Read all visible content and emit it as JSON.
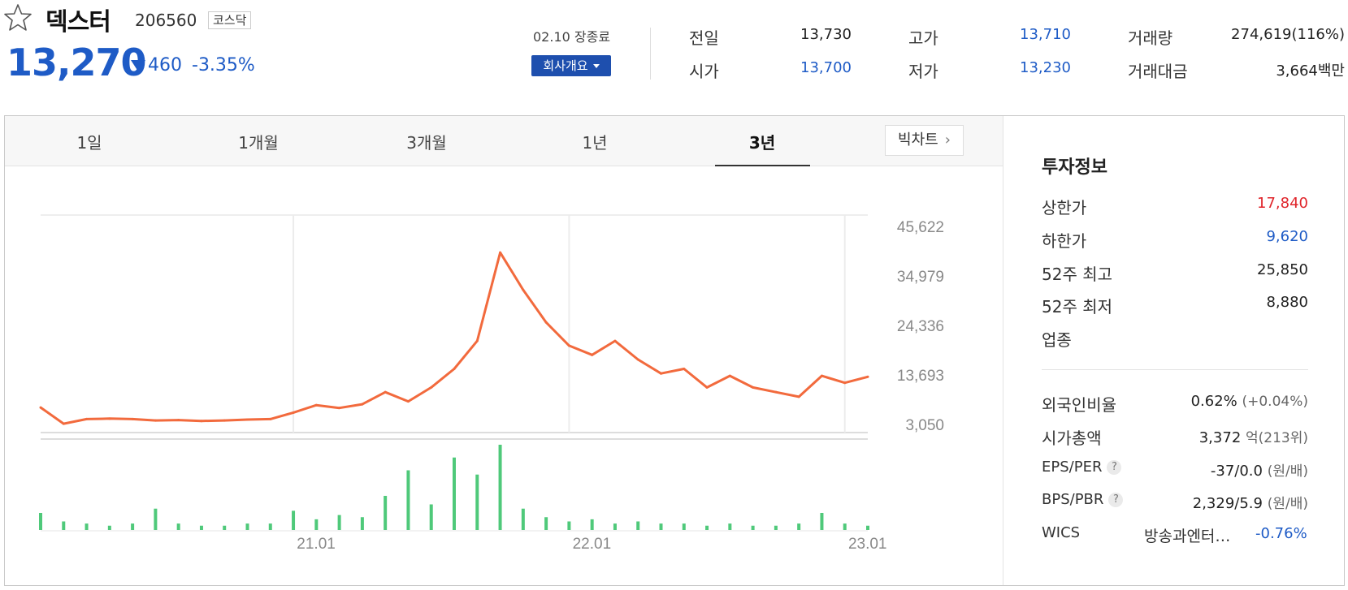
{
  "header": {
    "name": "덱스터",
    "code": "206560",
    "market": "코스닥",
    "price": "13,270",
    "change": "460",
    "change_rate": "-3.35%",
    "date_status": "02.10 장종료",
    "company_button": "회사개요"
  },
  "quote": {
    "prev_label": "전일",
    "prev": "13,730",
    "open_label": "시가",
    "open": "13,700",
    "high_label": "고가",
    "high": "13,710",
    "low_label": "저가",
    "low": "13,230",
    "volume_label": "거래량",
    "volume": "274,619(116%)",
    "value_label": "거래대금",
    "value_num": "3,664",
    "value_unit": "백만"
  },
  "tabs": [
    "1일",
    "1개월",
    "3개월",
    "1년",
    "3년"
  ],
  "big_chart": "빅차트",
  "info": {
    "title": "투자정보",
    "upper_label": "상한가",
    "upper": "17,840",
    "lower_label": "하한가",
    "lower": "9,620",
    "high52_label": "52주 최고",
    "high52": "25,850",
    "low52_label": "52주 최저",
    "low52": "8,880",
    "sector_label": "업종",
    "foreign_label": "외국인비율",
    "foreign": "0.62%",
    "foreign_change": "(+0.04%)",
    "mcap_label": "시가총액",
    "mcap": "3,372",
    "mcap_unit": "억",
    "mcap_rank": "(213위)",
    "eps_label": "EPS/PER",
    "eps": "-37/0.0",
    "eps_unit": "(원/배)",
    "bps_label": "BPS/PBR",
    "bps": "2,329/5.9",
    "bps_unit": "(원/배)",
    "wics_label": "WICS",
    "wics_name": "방송과엔터…",
    "wics_change": "-0.76%",
    "help_icon_text": "?"
  },
  "colors": {
    "accent": "#1e5bc6",
    "up": "#e0252b",
    "line": "#f26a3d",
    "volume": "#4fc97a"
  },
  "chart_data": {
    "type": "line",
    "title": "",
    "x_ticks": [
      "21.01",
      "22.01",
      "23.01"
    ],
    "y_ticks": [
      "45,622",
      "34,979",
      "24,336",
      "13,693",
      "3,050"
    ],
    "ylim": [
      3050,
      45622
    ],
    "x": [
      "20.02",
      "20.03",
      "20.04",
      "20.05",
      "20.06",
      "20.07",
      "20.08",
      "20.09",
      "20.10",
      "20.11",
      "20.12",
      "21.01",
      "21.02",
      "21.03",
      "21.04",
      "21.05",
      "21.06",
      "21.07",
      "21.08",
      "21.09",
      "21.10",
      "21.11",
      "21.12",
      "22.01",
      "22.02",
      "22.03",
      "22.04",
      "22.05",
      "22.06",
      "22.07",
      "22.08",
      "22.09",
      "22.10",
      "22.11",
      "22.12",
      "23.01",
      "23.02"
    ],
    "series": [
      {
        "values": [
          6700,
          3200,
          4200,
          4300,
          4200,
          3900,
          4000,
          3800,
          3900,
          4100,
          4200,
          5600,
          7200,
          6600,
          7400,
          10000,
          8000,
          11000,
          15000,
          21000,
          40000,
          32000,
          25000,
          20000,
          18000,
          21000,
          17000,
          14000,
          15000,
          11000,
          13500,
          11000,
          10000,
          9000,
          13500,
          12000,
          13300
        ]
      }
    ],
    "volume": [
      8,
      4,
      3,
      2,
      3,
      10,
      3,
      2,
      2,
      3,
      3,
      9,
      5,
      7,
      6,
      16,
      28,
      12,
      34,
      26,
      40,
      10,
      6,
      4,
      5,
      3,
      4,
      3,
      3,
      2,
      3,
      2,
      2,
      3,
      8,
      3,
      2
    ]
  }
}
